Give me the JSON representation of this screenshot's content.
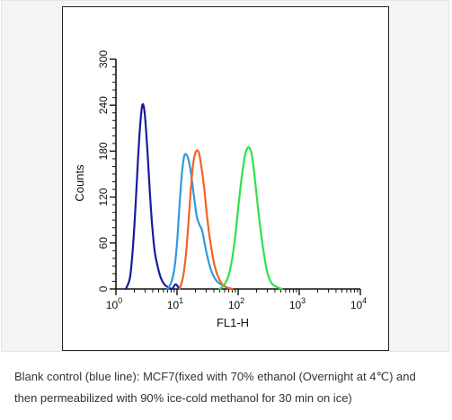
{
  "caption": {
    "line1": "Blank control (blue line): MCF7(fixed with 70% ethanol (Overnight at 4℃) and",
    "line2": "then permeabilized with 90% ice-cold methanol for 30 min on ice)"
  },
  "chart_data": {
    "type": "line",
    "title": "",
    "xlabel": "FL1-H",
    "ylabel": "Counts",
    "xscale": "log",
    "xlim": [
      1,
      10000
    ],
    "ylim": [
      0,
      300
    ],
    "x_ticks": [
      {
        "value": 1,
        "base": "10",
        "exp": "0"
      },
      {
        "value": 10,
        "base": "10",
        "exp": "1"
      },
      {
        "value": 100,
        "base": "10",
        "exp": "2"
      },
      {
        "value": 1000,
        "base": "10",
        "exp": "3"
      },
      {
        "value": 10000,
        "base": "10",
        "exp": "4"
      }
    ],
    "y_ticks": [
      "0",
      "60",
      "120",
      "180",
      "240",
      "300"
    ],
    "y_tick_values": [
      0,
      60,
      120,
      180,
      240,
      300
    ],
    "grid": false,
    "legend": "none",
    "series": [
      {
        "color": "#1a1a9c",
        "x": [
          1.45,
          1.7,
          1.9,
          2.1,
          2.3,
          2.5,
          2.7,
          2.9,
          3.1,
          3.35,
          3.6,
          3.9,
          4.3,
          4.8,
          5.4,
          6.2,
          7.2,
          8.3,
          9.5,
          11
        ],
        "y": [
          0,
          15,
          55,
          110,
          170,
          215,
          240,
          235,
          210,
          168,
          125,
          85,
          50,
          30,
          15,
          6,
          2,
          0,
          6,
          0
        ]
      },
      {
        "color": "#2f9ae0",
        "x": [
          7,
          8,
          9,
          10,
          11,
          12,
          13,
          14,
          15.5,
          17,
          19,
          21,
          23,
          26,
          29,
          33,
          38,
          45,
          55,
          65,
          75
        ],
        "y": [
          0,
          8,
          25,
          60,
          110,
          150,
          172,
          176,
          168,
          150,
          120,
          95,
          85,
          75,
          55,
          35,
          20,
          10,
          5,
          2,
          0
        ]
      },
      {
        "color": "#f06422",
        "x": [
          11,
          12.5,
          14,
          15.5,
          17,
          18.5,
          20,
          21.5,
          23,
          25,
          28,
          31,
          35,
          40,
          46,
          55,
          65,
          80
        ],
        "y": [
          0,
          15,
          45,
          90,
          135,
          165,
          178,
          181,
          177,
          160,
          130,
          95,
          62,
          35,
          18,
          6,
          2,
          0
        ]
      },
      {
        "color": "#2fe24a",
        "x": [
          50,
          60,
          70,
          80,
          90,
          100,
          110,
          120,
          130,
          140,
          150,
          162,
          175,
          190,
          210,
          235,
          265,
          300,
          350,
          420,
          520
        ],
        "y": [
          0,
          6,
          18,
          40,
          70,
          105,
          135,
          158,
          175,
          183,
          185,
          180,
          165,
          140,
          108,
          75,
          45,
          22,
          8,
          3,
          0
        ]
      }
    ]
  }
}
